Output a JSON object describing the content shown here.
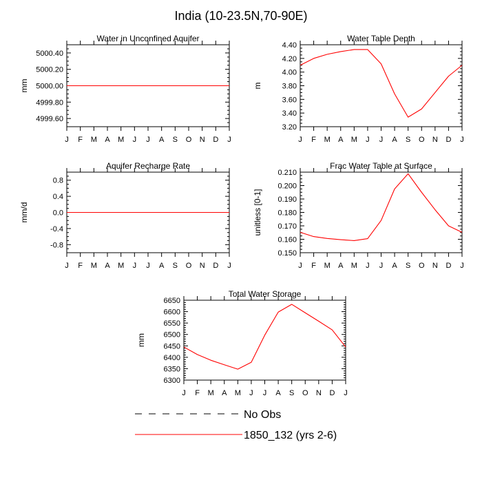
{
  "title": "India (10-23.5N,70-90E)",
  "month_labels": [
    "J",
    "F",
    "M",
    "A",
    "M",
    "J",
    "J",
    "A",
    "S",
    "O",
    "N",
    "D",
    "J"
  ],
  "colors": {
    "model": "#ff0000",
    "obs": "#000000",
    "axis": "#000000"
  },
  "legend": {
    "obs_label": "No Obs",
    "model_label": "1850_132 (yrs 2-6)"
  },
  "chart_data": [
    {
      "id": "unconfined",
      "type": "line",
      "title": "Water in Unconfined Aquifer",
      "ylabel": "mm",
      "ylim": [
        4999.5,
        5000.5
      ],
      "yticks": [
        4999.6,
        4999.8,
        5000.0,
        5000.2,
        5000.4
      ],
      "ytick_labels": [
        "4999.60",
        "4999.80",
        "5000.00",
        "5000.20",
        "5000.40"
      ],
      "yminor": [
        4999.5,
        4999.55,
        4999.65,
        4999.7,
        4999.75,
        4999.85,
        4999.9,
        4999.95,
        5000.05,
        5000.1,
        5000.15,
        5000.25,
        5000.3,
        5000.35,
        5000.45,
        5000.5
      ],
      "series": [
        {
          "name": "1850_132 (yrs 2-6)",
          "values": [
            5000.0,
            5000.0,
            5000.0,
            5000.0,
            5000.0,
            5000.0,
            5000.0,
            5000.0,
            5000.0,
            5000.0,
            5000.0,
            5000.0,
            5000.0
          ]
        }
      ]
    },
    {
      "id": "wtd",
      "type": "line",
      "title": "Water Table Depth",
      "ylabel": "m",
      "ylim": [
        3.2,
        4.4
      ],
      "yticks": [
        3.2,
        3.4,
        3.6,
        3.8,
        4.0,
        4.2,
        4.4
      ],
      "ytick_labels": [
        "3.20",
        "3.40",
        "3.60",
        "3.80",
        "4.00",
        "4.20",
        "4.40"
      ],
      "yminor": [
        3.25,
        3.3,
        3.35,
        3.45,
        3.5,
        3.55,
        3.65,
        3.7,
        3.75,
        3.85,
        3.9,
        3.95,
        4.05,
        4.1,
        4.15,
        4.25,
        4.3,
        4.35
      ],
      "series": [
        {
          "name": "1850_132 (yrs 2-6)",
          "values": [
            4.1,
            4.2,
            4.26,
            4.3,
            4.33,
            4.33,
            4.12,
            3.68,
            3.34,
            3.46,
            3.7,
            3.94,
            4.1
          ]
        }
      ]
    },
    {
      "id": "recharge",
      "type": "line",
      "title": "Aquifer Recharge Rate",
      "ylabel": "mm/d",
      "ylim": [
        -1.0,
        1.0
      ],
      "yticks": [
        -0.8,
        -0.4,
        0.0,
        0.4,
        0.8
      ],
      "ytick_labels": [
        "-0.8",
        "-0.4",
        "0.0",
        "0.4",
        "0.8"
      ],
      "yminor": [
        -1.0,
        -0.9,
        -0.7,
        -0.6,
        -0.5,
        -0.3,
        -0.2,
        -0.1,
        0.1,
        0.2,
        0.3,
        0.5,
        0.6,
        0.7,
        0.9,
        1.0
      ],
      "series": [
        {
          "name": "1850_132 (yrs 2-6)",
          "values": [
            0,
            0,
            0,
            0,
            0,
            0,
            0,
            0,
            0,
            0,
            0,
            0,
            0
          ]
        }
      ]
    },
    {
      "id": "fwt",
      "type": "line",
      "title": "Frac Water Table at Surface",
      "ylabel": "unitless [0-1]",
      "ylim": [
        0.15,
        0.21
      ],
      "yticks": [
        0.15,
        0.16,
        0.17,
        0.18,
        0.19,
        0.2,
        0.21
      ],
      "ytick_labels": [
        "0.150",
        "0.160",
        "0.170",
        "0.180",
        "0.190",
        "0.200",
        "0.210"
      ],
      "yminor": [
        0.1525,
        0.155,
        0.1575,
        0.1625,
        0.165,
        0.1675,
        0.1725,
        0.175,
        0.1775,
        0.1825,
        0.185,
        0.1875,
        0.1925,
        0.195,
        0.1975,
        0.2025,
        0.205,
        0.2075
      ],
      "series": [
        {
          "name": "1850_132 (yrs 2-6)",
          "values": [
            0.1652,
            0.162,
            0.1606,
            0.1597,
            0.159,
            0.1605,
            0.174,
            0.1975,
            0.2088,
            0.195,
            0.182,
            0.17,
            0.1652
          ]
        }
      ]
    },
    {
      "id": "tws",
      "type": "line",
      "title": "Total Water Storage",
      "ylabel": "mm",
      "ylim": [
        6300,
        6650
      ],
      "yticks": [
        6300,
        6350,
        6400,
        6450,
        6500,
        6550,
        6600,
        6650
      ],
      "ytick_labels": [
        "6300",
        "6350",
        "6400",
        "6450",
        "6500",
        "6550",
        "6600",
        "6650"
      ],
      "yminor": [
        6310,
        6320,
        6330,
        6340,
        6360,
        6370,
        6380,
        6390,
        6410,
        6420,
        6430,
        6440,
        6460,
        6470,
        6480,
        6490,
        6510,
        6520,
        6530,
        6540,
        6560,
        6570,
        6580,
        6590,
        6610,
        6620,
        6630,
        6640
      ],
      "series": [
        {
          "name": "1850_132 (yrs 2-6)",
          "values": [
            6445,
            6412,
            6387,
            6367,
            6348,
            6378,
            6497,
            6598,
            6632,
            6595,
            6558,
            6520,
            6445
          ]
        }
      ]
    }
  ]
}
